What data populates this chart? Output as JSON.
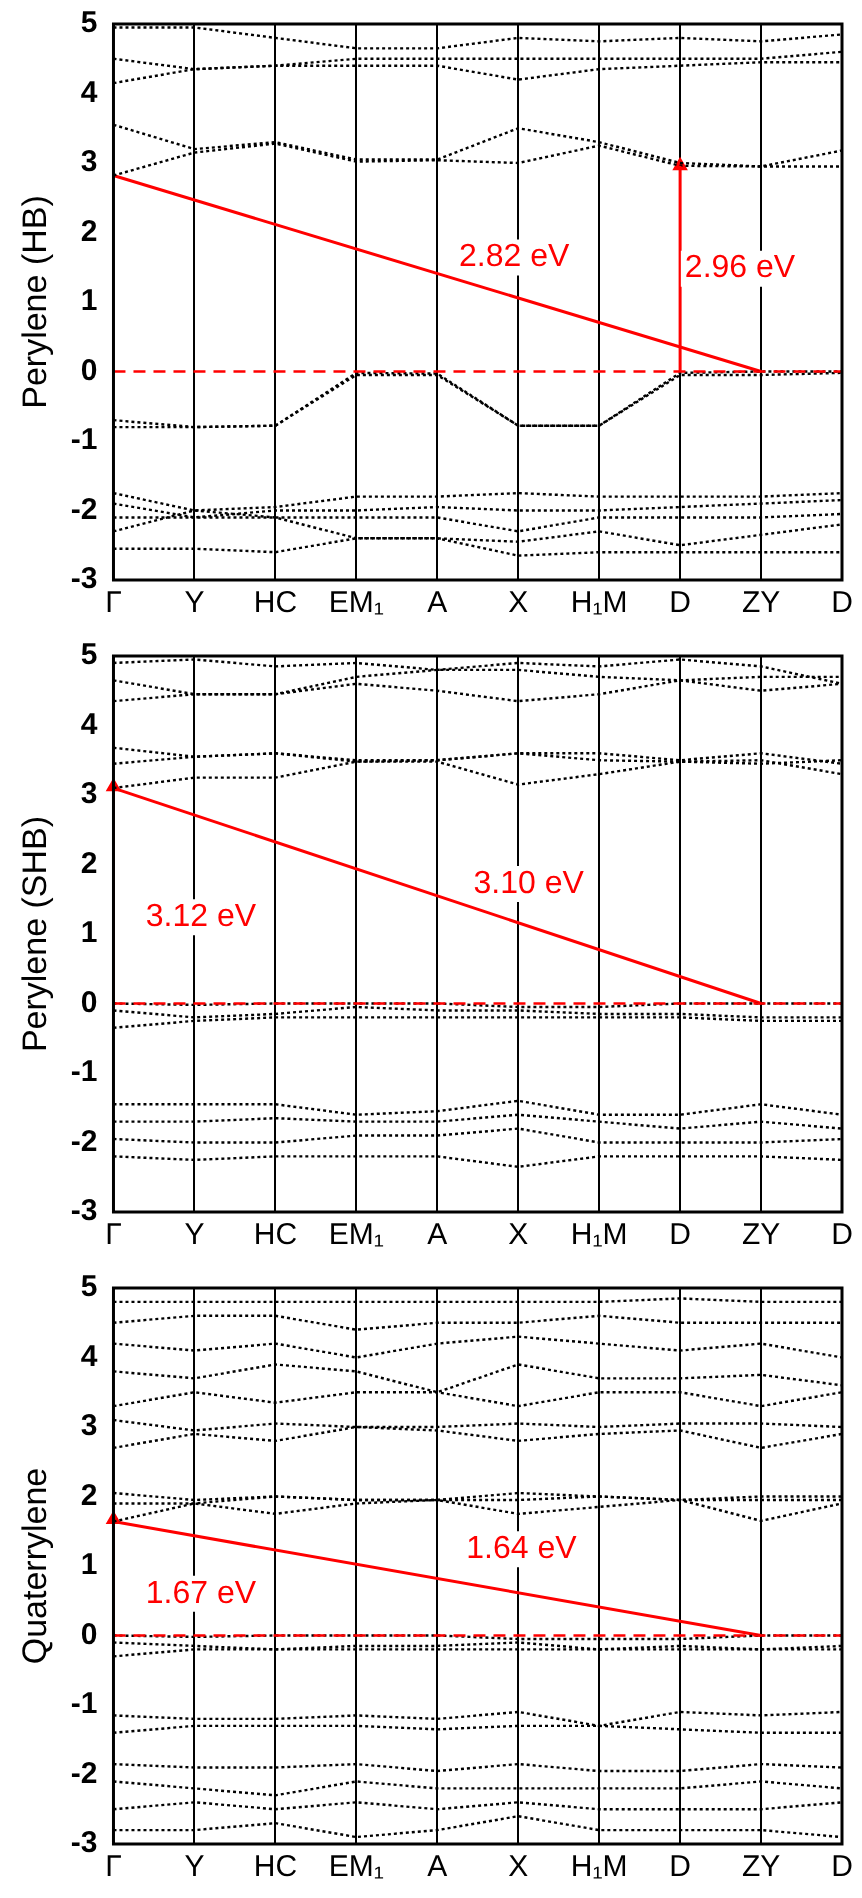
{
  "chart_data": [
    {
      "type": "line",
      "ylabel": "Perylene (HB)",
      "categories": [
        "Γ",
        "Y",
        "HC",
        "EM₁",
        "A",
        "X",
        "H₁M",
        "D",
        "ZY",
        "D"
      ],
      "ylim": [
        -3,
        5
      ],
      "yticks": [
        -3,
        -2,
        -1,
        0,
        1,
        2,
        3,
        4,
        5
      ],
      "grid": "x",
      "marker": "none",
      "line_style": "dotted",
      "ref_lines": [
        {
          "axis": "y",
          "value": 0,
          "color": "#ff0000",
          "line_style": "dashed"
        }
      ],
      "annotations": [
        "2.82 eV",
        "2.96 eV"
      ],
      "series": [
        {
          "color": "#000000",
          "values": [
            -0.7,
            -0.8,
            -0.78,
            -0.02,
            -0.03,
            -0.78,
            -0.78,
            -0.02,
            0,
            0
          ]
        },
        {
          "color": "#000000",
          "values": [
            -0.8,
            -0.8,
            -0.78,
            -0.05,
            -0.05,
            -0.78,
            -0.78,
            -0.05,
            -0.05,
            -0.02
          ]
        },
        {
          "color": "#000000",
          "values": [
            2.82,
            3.15,
            3.28,
            3.02,
            3.04,
            3.0,
            3.25,
            2.96,
            2.95,
            3.18
          ]
        },
        {
          "color": "#000000",
          "values": [
            3.55,
            3.2,
            3.3,
            3.05,
            3.05,
            3.5,
            3.3,
            3.0,
            2.95,
            2.95
          ]
        },
        {
          "color": "#000000",
          "values": [
            4.15,
            4.35,
            4.4,
            4.4,
            4.4,
            4.2,
            4.35,
            4.4,
            4.45,
            4.45
          ]
        },
        {
          "color": "#000000",
          "values": [
            4.5,
            4.35,
            4.4,
            4.5,
            4.5,
            4.5,
            4.5,
            4.5,
            4.5,
            4.6
          ]
        },
        {
          "color": "#000000",
          "values": [
            4.95,
            4.95,
            4.8,
            4.65,
            4.65,
            4.8,
            4.75,
            4.8,
            4.75,
            4.85
          ]
        },
        {
          "color": "#000000",
          "values": [
            -1.75,
            -2.0,
            -1.95,
            -1.8,
            -1.8,
            -1.75,
            -1.8,
            -1.8,
            -1.8,
            -1.75
          ]
        },
        {
          "color": "#000000",
          "values": [
            -1.9,
            -2.1,
            -2.0,
            -2.0,
            -1.95,
            -2.0,
            -2.0,
            -1.95,
            -1.9,
            -1.85
          ]
        },
        {
          "color": "#000000",
          "values": [
            -2.1,
            -2.1,
            -2.1,
            -2.1,
            -2.1,
            -2.3,
            -2.1,
            -2.1,
            -2.1,
            -2.05
          ]
        },
        {
          "color": "#000000",
          "values": [
            -2.3,
            -2.0,
            -2.1,
            -2.4,
            -2.4,
            -2.45,
            -2.3,
            -2.5,
            -2.35,
            -2.2
          ]
        },
        {
          "color": "#000000",
          "values": [
            -2.55,
            -2.55,
            -2.6,
            -2.4,
            -2.4,
            -2.65,
            -2.6,
            -2.6,
            -2.6,
            -2.6
          ]
        },
        {
          "type": "line",
          "color": "#ff0000",
          "line_style": "solid",
          "values": [
            2.82,
            null,
            null,
            null,
            null,
            null,
            null,
            null,
            0,
            null
          ]
        },
        {
          "type": "line",
          "color": "#ff0000",
          "line_style": "solid",
          "marker": "triangle",
          "values": [
            null,
            null,
            null,
            null,
            null,
            null,
            null,
            2.96,
            null,
            null
          ],
          "errors": [
            null,
            null,
            null,
            null,
            null,
            null,
            null,
            [
              0,
              2.96
            ],
            null,
            null
          ]
        }
      ]
    },
    {
      "type": "line",
      "ylabel": "Perylene (SHB)",
      "categories": [
        "Γ",
        "Y",
        "HC",
        "EM₁",
        "A",
        "X",
        "H₁M",
        "D",
        "ZY",
        "D"
      ],
      "ylim": [
        -3,
        5
      ],
      "yticks": [
        -3,
        -2,
        -1,
        0,
        1,
        2,
        3,
        4,
        5
      ],
      "grid": "x",
      "marker": "none",
      "line_style": "dotted",
      "ref_lines": [
        {
          "axis": "y",
          "value": 0,
          "color": "#ff0000",
          "line_style": "dashed"
        }
      ],
      "annotations": [
        "3.10 eV",
        "3.12 eV"
      ],
      "series": [
        {
          "color": "#000000",
          "values": [
            0,
            -0.02,
            0,
            0,
            0,
            -0.05,
            -0.05,
            0,
            0,
            0
          ]
        },
        {
          "color": "#000000",
          "values": [
            -0.1,
            -0.2,
            -0.15,
            -0.05,
            -0.1,
            -0.1,
            -0.15,
            -0.15,
            -0.2,
            -0.2
          ]
        },
        {
          "color": "#000000",
          "values": [
            -0.35,
            -0.25,
            -0.2,
            -0.2,
            -0.2,
            -0.2,
            -0.2,
            -0.2,
            -0.25,
            -0.25
          ]
        },
        {
          "color": "#000000",
          "values": [
            3.1,
            3.25,
            3.25,
            3.48,
            3.48,
            3.15,
            3.3,
            3.48,
            3.5,
            3.3
          ]
        },
        {
          "color": "#000000",
          "values": [
            3.45,
            3.55,
            3.6,
            3.48,
            3.5,
            3.6,
            3.5,
            3.48,
            3.45,
            3.5
          ]
        },
        {
          "color": "#000000",
          "values": [
            3.68,
            3.55,
            3.6,
            3.5,
            3.5,
            3.6,
            3.6,
            3.5,
            3.6,
            3.45
          ]
        },
        {
          "color": "#000000",
          "values": [
            4.35,
            4.45,
            4.45,
            4.6,
            4.5,
            4.35,
            4.45,
            4.65,
            4.5,
            4.6
          ]
        },
        {
          "color": "#000000",
          "values": [
            4.65,
            4.45,
            4.45,
            4.7,
            4.8,
            4.8,
            4.7,
            4.65,
            4.7,
            4.7
          ]
        },
        {
          "color": "#000000",
          "values": [
            4.9,
            4.95,
            4.85,
            4.9,
            4.8,
            4.9,
            4.85,
            4.95,
            4.85,
            4.6
          ]
        },
        {
          "color": "#000000",
          "values": [
            -1.45,
            -1.45,
            -1.45,
            -1.6,
            -1.55,
            -1.4,
            -1.6,
            -1.6,
            -1.45,
            -1.6
          ]
        },
        {
          "color": "#000000",
          "values": [
            -1.7,
            -1.7,
            -1.65,
            -1.7,
            -1.7,
            -1.6,
            -1.7,
            -1.8,
            -1.7,
            -1.8
          ]
        },
        {
          "color": "#000000",
          "values": [
            -1.95,
            -2.0,
            -2.0,
            -1.9,
            -1.9,
            -1.8,
            -2.0,
            -2.0,
            -2.0,
            -1.95
          ]
        },
        {
          "color": "#000000",
          "values": [
            -2.2,
            -2.25,
            -2.2,
            -2.2,
            -2.2,
            -2.35,
            -2.2,
            -2.2,
            -2.2,
            -2.25
          ]
        },
        {
          "type": "line",
          "color": "#ff0000",
          "line_style": "solid",
          "values": [
            3.1,
            null,
            null,
            null,
            null,
            null,
            null,
            null,
            0,
            null
          ]
        },
        {
          "type": "line",
          "color": "#ff0000",
          "line_style": "solid",
          "marker": "triangle",
          "values": [
            3.12,
            null,
            null,
            null,
            null,
            null,
            null,
            null,
            null,
            null
          ],
          "errors": [
            [
              0,
              3.12
            ],
            null,
            null,
            null,
            null,
            null,
            null,
            null,
            null,
            null
          ]
        }
      ]
    },
    {
      "type": "line",
      "ylabel": "Quaterrylene",
      "categories": [
        "Γ",
        "Y",
        "HC",
        "EM₁",
        "A",
        "X",
        "H₁M",
        "D",
        "ZY",
        "D"
      ],
      "ylim": [
        -3,
        5
      ],
      "yticks": [
        -3,
        -2,
        -1,
        0,
        1,
        2,
        3,
        4,
        5
      ],
      "grid": "x",
      "marker": "none",
      "line_style": "dotted",
      "ref_lines": [
        {
          "axis": "y",
          "value": 0,
          "color": "#ff0000",
          "line_style": "dashed"
        }
      ],
      "annotations": [
        "1.64 eV",
        "1.67 eV"
      ],
      "series": [
        {
          "color": "#000000",
          "values": [
            0,
            -0.02,
            0,
            0,
            0,
            -0.05,
            -0.05,
            -0.05,
            0,
            0
          ]
        },
        {
          "color": "#000000",
          "values": [
            -0.1,
            -0.15,
            -0.2,
            -0.15,
            -0.15,
            -0.1,
            -0.2,
            -0.15,
            -0.2,
            -0.15
          ]
        },
        {
          "color": "#000000",
          "values": [
            -0.3,
            -0.2,
            -0.2,
            -0.2,
            -0.2,
            -0.2,
            -0.2,
            -0.2,
            -0.2,
            -0.2
          ]
        },
        {
          "color": "#000000",
          "values": [
            -1.15,
            -1.2,
            -1.2,
            -1.15,
            -1.2,
            -1.1,
            -1.3,
            -1.1,
            -1.15,
            -1.1
          ]
        },
        {
          "color": "#000000",
          "values": [
            -1.4,
            -1.3,
            -1.3,
            -1.3,
            -1.35,
            -1.3,
            -1.3,
            -1.35,
            -1.4,
            -1.4
          ]
        },
        {
          "color": "#000000",
          "values": [
            1.64,
            1.9,
            1.75,
            1.9,
            1.95,
            1.75,
            1.85,
            1.95,
            1.65,
            1.9
          ]
        },
        {
          "color": "#000000",
          "values": [
            1.9,
            1.9,
            2.0,
            1.95,
            1.95,
            1.95,
            2.0,
            1.95,
            1.95,
            1.95
          ]
        },
        {
          "color": "#000000",
          "values": [
            2.05,
            1.95,
            2.0,
            1.95,
            1.95,
            2.05,
            2.0,
            1.95,
            2.0,
            2.0
          ]
        },
        {
          "color": "#000000",
          "values": [
            2.7,
            2.9,
            2.8,
            3.0,
            2.95,
            2.8,
            2.9,
            2.95,
            2.7,
            2.9
          ]
        },
        {
          "color": "#000000",
          "values": [
            3.1,
            2.95,
            3.05,
            3.0,
            3.0,
            3.05,
            3.0,
            3.05,
            3.05,
            3.0
          ]
        },
        {
          "color": "#000000",
          "values": [
            3.3,
            3.5,
            3.35,
            3.5,
            3.5,
            3.3,
            3.5,
            3.5,
            3.3,
            3.5
          ]
        },
        {
          "color": "#000000",
          "values": [
            3.8,
            3.7,
            3.9,
            3.8,
            3.5,
            3.9,
            3.7,
            3.7,
            3.75,
            3.6
          ]
        },
        {
          "color": "#000000",
          "values": [
            4.2,
            4.1,
            4.2,
            4.0,
            4.2,
            4.3,
            4.2,
            4.1,
            4.2,
            4.0
          ]
        },
        {
          "color": "#000000",
          "values": [
            4.5,
            4.6,
            4.6,
            4.4,
            4.5,
            4.5,
            4.6,
            4.5,
            4.5,
            4.5
          ]
        },
        {
          "color": "#000000",
          "values": [
            4.8,
            4.8,
            4.8,
            4.8,
            4.8,
            4.8,
            4.8,
            4.85,
            4.8,
            4.8
          ]
        },
        {
          "color": "#000000",
          "values": [
            -1.85,
            -1.9,
            -1.9,
            -1.85,
            -1.95,
            -1.85,
            -1.95,
            -1.95,
            -1.85,
            -1.9
          ]
        },
        {
          "color": "#000000",
          "values": [
            -2.1,
            -2.2,
            -2.3,
            -2.1,
            -2.2,
            -2.2,
            -2.2,
            -2.2,
            -2.1,
            -2.2
          ]
        },
        {
          "color": "#000000",
          "values": [
            -2.5,
            -2.4,
            -2.5,
            -2.4,
            -2.5,
            -2.4,
            -2.5,
            -2.5,
            -2.5,
            -2.4
          ]
        },
        {
          "color": "#000000",
          "values": [
            -2.8,
            -2.8,
            -2.7,
            -2.9,
            -2.8,
            -2.6,
            -2.8,
            -2.8,
            -2.8,
            -2.9
          ]
        },
        {
          "type": "line",
          "color": "#ff0000",
          "line_style": "solid",
          "values": [
            1.64,
            null,
            null,
            null,
            null,
            null,
            null,
            null,
            0,
            null
          ]
        },
        {
          "type": "line",
          "color": "#ff0000",
          "line_style": "solid",
          "marker": "triangle",
          "values": [
            1.67,
            null,
            null,
            null,
            null,
            null,
            null,
            null,
            null,
            null
          ],
          "errors": [
            [
              0,
              1.67
            ],
            null,
            null,
            null,
            null,
            null,
            null,
            null,
            null,
            null
          ]
        }
      ]
    }
  ]
}
